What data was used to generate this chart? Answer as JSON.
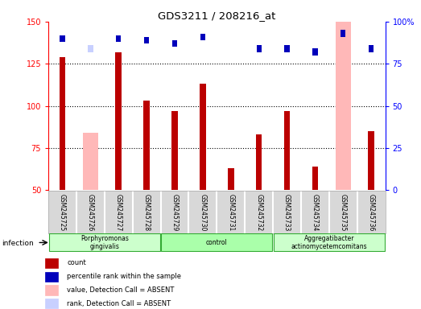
{
  "title": "GDS3211 / 208216_at",
  "samples": [
    "GSM245725",
    "GSM245726",
    "GSM245727",
    "GSM245728",
    "GSM245729",
    "GSM245730",
    "GSM245731",
    "GSM245732",
    "GSM245733",
    "GSM245734",
    "GSM245735",
    "GSM245736"
  ],
  "count_values": [
    129,
    null,
    132,
    103,
    97,
    113,
    63,
    83,
    97,
    64,
    null,
    85
  ],
  "rank_values": [
    90,
    null,
    90,
    89,
    87,
    91,
    null,
    84,
    84,
    82,
    93,
    84
  ],
  "absent_count_values": [
    null,
    84,
    null,
    null,
    null,
    null,
    null,
    null,
    null,
    null,
    150,
    null
  ],
  "absent_rank_values": [
    null,
    84,
    null,
    null,
    null,
    null,
    null,
    null,
    null,
    null,
    93,
    null
  ],
  "count_color": "#bb0000",
  "rank_color": "#0000bb",
  "absent_count_color": "#ffb8b8",
  "absent_rank_color": "#c8d0ff",
  "ylim_left": [
    50,
    150
  ],
  "ylim_right": [
    0,
    100
  ],
  "yticks_left": [
    50,
    75,
    100,
    125,
    150
  ],
  "yticks_right": [
    0,
    25,
    50,
    75,
    100
  ],
  "grid_lines": [
    75,
    100,
    125
  ],
  "groups": [
    {
      "label": "Porphyromonas\ngingivalis",
      "start": 0,
      "end": 3,
      "color": "#ccffcc"
    },
    {
      "label": "control",
      "start": 4,
      "end": 7,
      "color": "#aaffaa"
    },
    {
      "label": "Aggregatibacter\nactinomycetemcomitans",
      "start": 8,
      "end": 11,
      "color": "#ccffcc"
    }
  ],
  "infection_label": "infection",
  "legend_items": [
    {
      "label": "count",
      "color": "#bb0000"
    },
    {
      "label": "percentile rank within the sample",
      "color": "#0000bb"
    },
    {
      "label": "value, Detection Call = ABSENT",
      "color": "#ffb8b8"
    },
    {
      "label": "rank, Detection Call = ABSENT",
      "color": "#c8d0ff"
    }
  ]
}
